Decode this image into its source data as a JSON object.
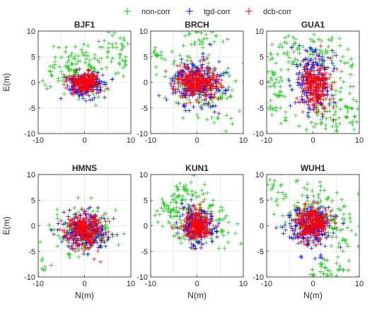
{
  "legend": {
    "placement": "top",
    "entries": [
      {
        "label": "non-corr",
        "color": "#00cc00"
      },
      {
        "label": "tgd-corr",
        "color": "#0000ff"
      },
      {
        "label": "dcb-corr",
        "color": "#ff0000"
      }
    ]
  },
  "xlabel": "N(m)",
  "ylabel": "E(m)",
  "chart_data": [
    {
      "type": "scatter",
      "title": "BJF1",
      "xlim": [
        -10,
        10
      ],
      "ylim": [
        -10,
        10
      ],
      "xticks": [
        "-10",
        "0",
        "10"
      ],
      "yticks": [
        "10",
        "5",
        "0",
        "-5",
        "-10"
      ],
      "grid": true,
      "series": [
        {
          "name": "non-corr",
          "clusters": [
            {
              "cx": 0,
              "cy": 0.5,
              "sx": 2.5,
              "sy": 2.0,
              "n": 60
            },
            {
              "cx": -2,
              "cy": 4,
              "sx": 3.0,
              "sy": 1.5,
              "n": 60
            },
            {
              "cx": 6,
              "cy": 8,
              "sx": 2.0,
              "sy": 1.5,
              "n": 25
            },
            {
              "cx": -8,
              "cy": 2,
              "sx": 1.5,
              "sy": 2.0,
              "n": 20
            },
            {
              "cx": 8,
              "cy": 3,
              "sx": 1.5,
              "sy": 1.5,
              "n": 15
            }
          ]
        },
        {
          "name": "tgd-corr",
          "clusters": [
            {
              "cx": 0,
              "cy": -0.5,
              "sx": 2.0,
              "sy": 1.2,
              "n": 170
            }
          ]
        },
        {
          "name": "dcb-corr",
          "clusters": [
            {
              "cx": 0,
              "cy": 0,
              "sx": 1.6,
              "sy": 1.0,
              "n": 230
            }
          ]
        }
      ]
    },
    {
      "type": "scatter",
      "title": "BRCH",
      "xlim": [
        -10,
        10
      ],
      "ylim": [
        -10,
        10
      ],
      "xticks": [
        "-10",
        "0",
        "10"
      ],
      "yticks": [
        "10",
        "5",
        "0",
        "-5",
        "-10"
      ],
      "grid": true,
      "series": [
        {
          "name": "non-corr",
          "clusters": [
            {
              "cx": 0,
              "cy": 0,
              "sx": 4.0,
              "sy": 3.5,
              "n": 90
            },
            {
              "cx": -9,
              "cy": 5,
              "sx": 1.0,
              "sy": 1.0,
              "n": 15
            },
            {
              "cx": 0,
              "cy": 9,
              "sx": 2.5,
              "sy": 0.8,
              "n": 25
            },
            {
              "cx": 3,
              "cy": -3.5,
              "sx": 3.0,
              "sy": 1.0,
              "n": 25
            },
            {
              "cx": 5,
              "cy": -7,
              "sx": 2.0,
              "sy": 1.0,
              "n": 10
            }
          ]
        },
        {
          "name": "tgd-corr",
          "clusters": [
            {
              "cx": 0,
              "cy": 0,
              "sx": 3.0,
              "sy": 2.2,
              "n": 220
            }
          ]
        },
        {
          "name": "dcb-corr",
          "clusters": [
            {
              "cx": 0,
              "cy": 0,
              "sx": 2.5,
              "sy": 1.6,
              "n": 280
            }
          ]
        }
      ]
    },
    {
      "type": "scatter",
      "title": "GUA1",
      "xlim": [
        -10,
        10
      ],
      "ylim": [
        -10,
        10
      ],
      "xticks": [
        "-10",
        "0",
        "10"
      ],
      "yticks": [
        "10",
        "5",
        "0",
        "-5",
        "-10"
      ],
      "grid": true,
      "series": [
        {
          "name": "non-corr",
          "clusters": [
            {
              "cx": 0,
              "cy": 6,
              "sx": 5.0,
              "sy": 2.5,
              "n": 90
            },
            {
              "cx": -8,
              "cy": 0,
              "sx": 1.5,
              "sy": 3.0,
              "n": 50
            },
            {
              "cx": 2,
              "cy": -7,
              "sx": 5.0,
              "sy": 1.5,
              "n": 60
            },
            {
              "cx": 7,
              "cy": -3,
              "sx": 2.0,
              "sy": 3.0,
              "n": 40
            }
          ]
        },
        {
          "name": "tgd-corr",
          "clusters": [
            {
              "cx": 0,
              "cy": 0.5,
              "sx": 2.2,
              "sy": 3.0,
              "n": 170
            }
          ]
        },
        {
          "name": "dcb-corr",
          "clusters": [
            {
              "cx": 0.5,
              "cy": -0.5,
              "sx": 1.8,
              "sy": 2.2,
              "n": 230
            }
          ]
        }
      ]
    },
    {
      "type": "scatter",
      "title": "HMNS",
      "xlim": [
        -10,
        10
      ],
      "ylim": [
        -10,
        10
      ],
      "xticks": [
        "-10",
        "0",
        "10"
      ],
      "yticks": [
        "10",
        "5",
        "0",
        "-5",
        "-10"
      ],
      "grid": true,
      "series": [
        {
          "name": "non-corr",
          "clusters": [
            {
              "cx": 0,
              "cy": -1,
              "sx": 3.5,
              "sy": 2.2,
              "n": 130
            },
            {
              "cx": -9,
              "cy": -7.5,
              "sx": 0.8,
              "sy": 1.0,
              "n": 8
            }
          ]
        },
        {
          "name": "tgd-corr",
          "clusters": [
            {
              "cx": 0,
              "cy": -1,
              "sx": 2.5,
              "sy": 1.8,
              "n": 200
            }
          ]
        },
        {
          "name": "dcb-corr",
          "clusters": [
            {
              "cx": 0,
              "cy": -1,
              "sx": 2.2,
              "sy": 1.6,
              "n": 260
            }
          ]
        }
      ]
    },
    {
      "type": "scatter",
      "title": "KUN1",
      "xlim": [
        -10,
        10
      ],
      "ylim": [
        -10,
        10
      ],
      "xticks": [
        "-10",
        "0",
        "10"
      ],
      "yticks": [
        "10",
        "5",
        "0",
        "-5",
        "-10"
      ],
      "grid": true,
      "series": [
        {
          "name": "non-corr",
          "clusters": [
            {
              "cx": -5,
              "cy": 3,
              "sx": 3.0,
              "sy": 1.5,
              "n": 60
            },
            {
              "cx": -3,
              "cy": 7,
              "sx": 2.0,
              "sy": 1.5,
              "n": 30
            },
            {
              "cx": 0,
              "cy": 0,
              "sx": 2.8,
              "sy": 2.8,
              "n": 70
            },
            {
              "cx": 6,
              "cy": -1,
              "sx": 2.0,
              "sy": 2.0,
              "n": 20
            }
          ]
        },
        {
          "name": "tgd-corr",
          "clusters": [
            {
              "cx": 0,
              "cy": 0,
              "sx": 1.8,
              "sy": 1.8,
              "n": 180
            }
          ]
        },
        {
          "name": "dcb-corr",
          "clusters": [
            {
              "cx": 0,
              "cy": 0,
              "sx": 1.5,
              "sy": 1.5,
              "n": 230
            }
          ]
        }
      ]
    },
    {
      "type": "scatter",
      "title": "WUH1",
      "xlim": [
        -10,
        10
      ],
      "ylim": [
        -10,
        10
      ],
      "xticks": [
        "-10",
        "0",
        "10"
      ],
      "yticks": [
        "10",
        "5",
        "0",
        "-5",
        "-10"
      ],
      "grid": true,
      "series": [
        {
          "name": "non-corr",
          "clusters": [
            {
              "cx": 0,
              "cy": 4,
              "sx": 4.5,
              "sy": 2.5,
              "n": 90
            },
            {
              "cx": 5,
              "cy": -1,
              "sx": 2.5,
              "sy": 2.5,
              "n": 50
            },
            {
              "cx": 3,
              "cy": -9,
              "sx": 2.0,
              "sy": 1.2,
              "n": 40
            },
            {
              "cx": -8,
              "cy": 7,
              "sx": 1.5,
              "sy": 1.5,
              "n": 20
            }
          ]
        },
        {
          "name": "tgd-corr",
          "clusters": [
            {
              "cx": -0.5,
              "cy": 0,
              "sx": 2.5,
              "sy": 2.2,
              "n": 220
            }
          ]
        },
        {
          "name": "dcb-corr",
          "clusters": [
            {
              "cx": 0,
              "cy": 0.5,
              "sx": 2.0,
              "sy": 1.8,
              "n": 260
            }
          ]
        }
      ]
    }
  ]
}
